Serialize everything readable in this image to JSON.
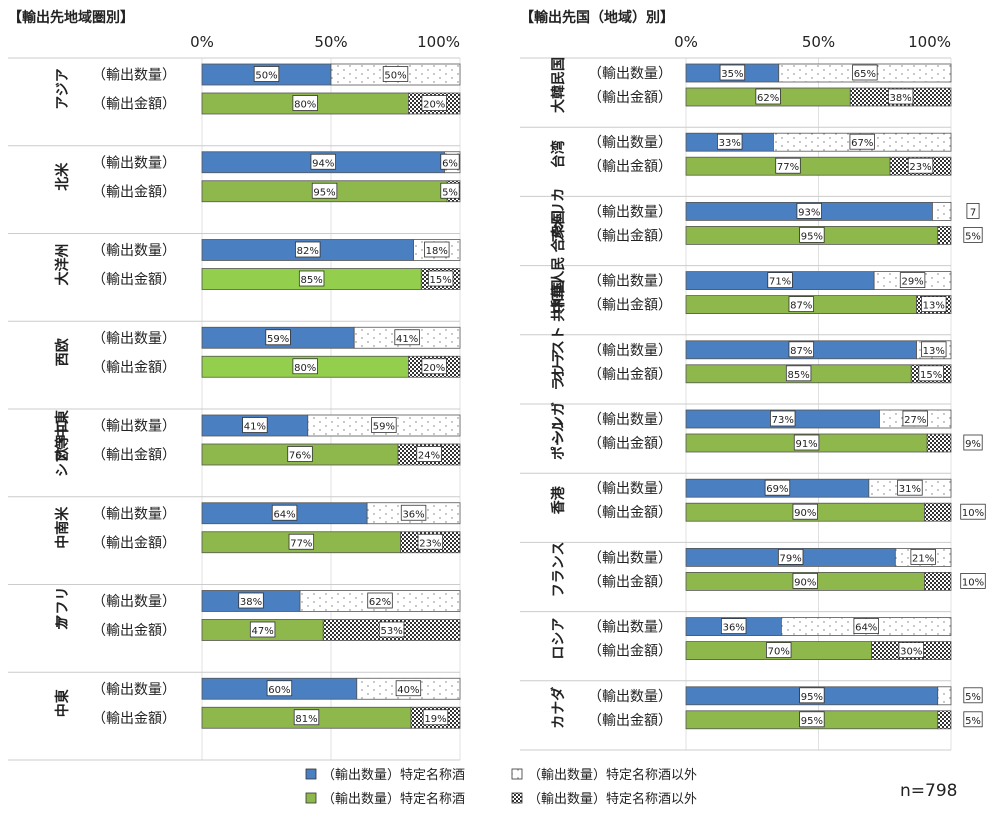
{
  "colors": {
    "qty_special": "#4a7fc1",
    "amt_special": "#8fb84c",
    "amt_special_bright": "#93cf4c",
    "qty_other_bg": "#ffffff",
    "amt_other_pattern": "checker",
    "grid": "#e0e0e0",
    "border": "#555555"
  },
  "legend": {
    "items": [
      {
        "label": "（輸出数量）特定名称酒",
        "style": "qty_special"
      },
      {
        "label": "（輸出数量）特定名称酒以外",
        "style": "qty_other"
      },
      {
        "label": "（輸出数量）特定名称酒",
        "style": "amt_special"
      },
      {
        "label": "（輸出数量）特定名称酒以外",
        "style": "amt_other"
      }
    ]
  },
  "n_label": "n=798",
  "chart_data": [
    {
      "type": "bar",
      "orientation": "horizontal",
      "stacked": "percent",
      "title": "【輸出先地域圏別】",
      "xticks": [
        "0%",
        "50%",
        "100%"
      ],
      "xlim": [
        0,
        100
      ],
      "row_labels": [
        "（輸出数量）",
        "（輸出金額）"
      ],
      "groups": [
        {
          "name": "アジア",
          "qty": [
            50,
            50
          ],
          "amt": [
            80,
            20
          ],
          "qty_labels": [
            "50%",
            "50%"
          ],
          "amt_labels": [
            "80%",
            "20%"
          ]
        },
        {
          "name": "北米",
          "qty": [
            94,
            6
          ],
          "amt": [
            95,
            5
          ],
          "qty_labels": [
            "94%",
            "6%"
          ],
          "amt_labels": [
            "95%",
            "5%"
          ]
        },
        {
          "name": "大洋州",
          "qty": [
            82,
            18
          ],
          "amt": [
            85,
            15
          ],
          "qty_labels": [
            "82%",
            "18%"
          ],
          "amt_labels": [
            "85%",
            "15%"
          ],
          "amt_bright": true
        },
        {
          "name": "西欧",
          "qty": [
            59,
            41
          ],
          "amt": [
            80,
            20
          ],
          "qty_labels": [
            "59%",
            "41%"
          ],
          "amt_labels": [
            "80%",
            "20%"
          ],
          "amt_bright": true
        },
        {
          "name": "中東欧・ロシア等",
          "name_lines": [
            "中東",
            "欧・ロ",
            "シア等"
          ],
          "qty": [
            41,
            59
          ],
          "amt": [
            76,
            24
          ],
          "qty_labels": [
            "41%",
            "59%"
          ],
          "amt_labels": [
            "76%",
            "24%"
          ]
        },
        {
          "name": "中南米",
          "qty": [
            64,
            36
          ],
          "amt": [
            77,
            23
          ],
          "qty_labels": [
            "64%",
            "36%"
          ],
          "amt_labels": [
            "77%",
            "23%"
          ]
        },
        {
          "name": "アフリカ",
          "name_lines": [
            "アフリ",
            "カ"
          ],
          "qty": [
            38,
            62
          ],
          "amt": [
            47,
            53
          ],
          "qty_labels": [
            "38%",
            "62%"
          ],
          "amt_labels": [
            "47%",
            "53%"
          ]
        },
        {
          "name": "中東",
          "qty": [
            60,
            40
          ],
          "amt": [
            81,
            19
          ],
          "qty_labels": [
            "60%",
            "40%"
          ],
          "amt_labels": [
            "81%",
            "19%"
          ]
        }
      ]
    },
    {
      "type": "bar",
      "orientation": "horizontal",
      "stacked": "percent",
      "title": "【輸出先国（地域）別】",
      "xticks": [
        "0%",
        "50%",
        "100%"
      ],
      "xlim": [
        0,
        100
      ],
      "row_labels": [
        "（輸出数量）",
        "（輸出金額）"
      ],
      "groups": [
        {
          "name": "大韓民国",
          "name_lines": [
            "大韓民国"
          ],
          "qty": [
            35,
            65
          ],
          "amt": [
            62,
            38
          ],
          "qty_labels": [
            "35%",
            "65%"
          ],
          "amt_labels": [
            "62%",
            "38%"
          ]
        },
        {
          "name": "台湾",
          "qty": [
            33,
            67
          ],
          "amt": [
            77,
            23
          ],
          "qty_labels": [
            "33%",
            "67%"
          ],
          "amt_labels": [
            "77%",
            "23%"
          ]
        },
        {
          "name": "アメリカ合衆国",
          "name_lines": [
            "アメリカ",
            "合衆国"
          ],
          "qty": [
            93,
            7
          ],
          "amt": [
            95,
            5
          ],
          "qty_labels": [
            "93%",
            "7"
          ],
          "amt_labels": [
            "95%",
            "5%"
          ],
          "qty_small_outside": true,
          "amt_small_outside": true
        },
        {
          "name": "中華人民共和国",
          "name_lines": [
            "中華人民",
            "共和国"
          ],
          "qty": [
            71,
            29
          ],
          "amt": [
            87,
            13
          ],
          "qty_labels": [
            "71%",
            "29%"
          ],
          "amt_labels": [
            "87%",
            "13%"
          ]
        },
        {
          "name": "オーストラリア",
          "name_lines": [
            "オースト",
            "ラリア"
          ],
          "qty": [
            87,
            13
          ],
          "amt": [
            85,
            15
          ],
          "qty_labels": [
            "87%",
            "13%"
          ],
          "amt_labels": [
            "85%",
            "15%"
          ]
        },
        {
          "name": "シンガポール",
          "name_lines": [
            "シンガ",
            "ポール"
          ],
          "qty": [
            73,
            27
          ],
          "amt": [
            91,
            9
          ],
          "qty_labels": [
            "73%",
            "27%"
          ],
          "amt_labels": [
            "91%",
            "9%"
          ],
          "amt_small_outside": true
        },
        {
          "name": "香港",
          "qty": [
            69,
            31
          ],
          "amt": [
            90,
            10
          ],
          "qty_labels": [
            "69%",
            "31%"
          ],
          "amt_labels": [
            "90%",
            "10%"
          ],
          "amt_small_outside": true
        },
        {
          "name": "フランス",
          "qty": [
            79,
            21
          ],
          "amt": [
            90,
            10
          ],
          "qty_labels": [
            "79%",
            "21%"
          ],
          "amt_labels": [
            "90%",
            "10%"
          ],
          "amt_small_outside": true
        },
        {
          "name": "ロシア",
          "qty": [
            36,
            64
          ],
          "amt": [
            70,
            30
          ],
          "qty_labels": [
            "36%",
            "64%"
          ],
          "amt_labels": [
            "70%",
            "30%"
          ]
        },
        {
          "name": "カナダ",
          "qty": [
            95,
            5
          ],
          "amt": [
            95,
            5
          ],
          "qty_labels": [
            "95%",
            "5%"
          ],
          "amt_labels": [
            "95%",
            "5%"
          ],
          "qty_small_outside": true,
          "amt_small_outside": true
        }
      ]
    }
  ]
}
